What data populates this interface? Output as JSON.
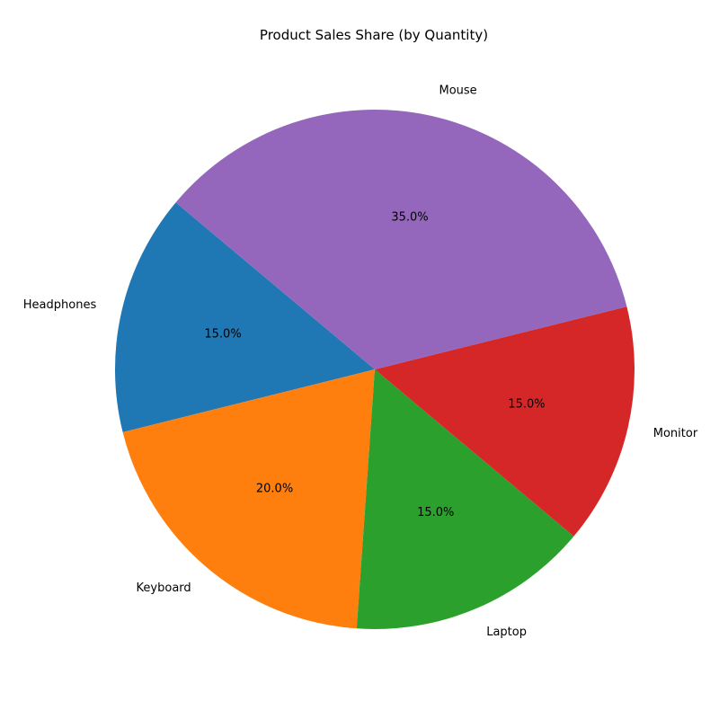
{
  "chart_data": {
    "type": "pie",
    "title": "Product Sales Share (by Quantity)",
    "categories": [
      "Headphones",
      "Keyboard",
      "Laptop",
      "Monitor",
      "Mouse"
    ],
    "values": [
      15.0,
      20.0,
      15.0,
      15.0,
      35.0
    ],
    "percent_labels": [
      "15.0%",
      "20.0%",
      "15.0%",
      "15.0%",
      "35.0%"
    ],
    "colors": [
      "#1f77b4",
      "#ff7f0e",
      "#2ca02c",
      "#d62728",
      "#9467bd"
    ],
    "start_angle_deg": 140,
    "direction": "counterclockwise",
    "legend": "none"
  }
}
